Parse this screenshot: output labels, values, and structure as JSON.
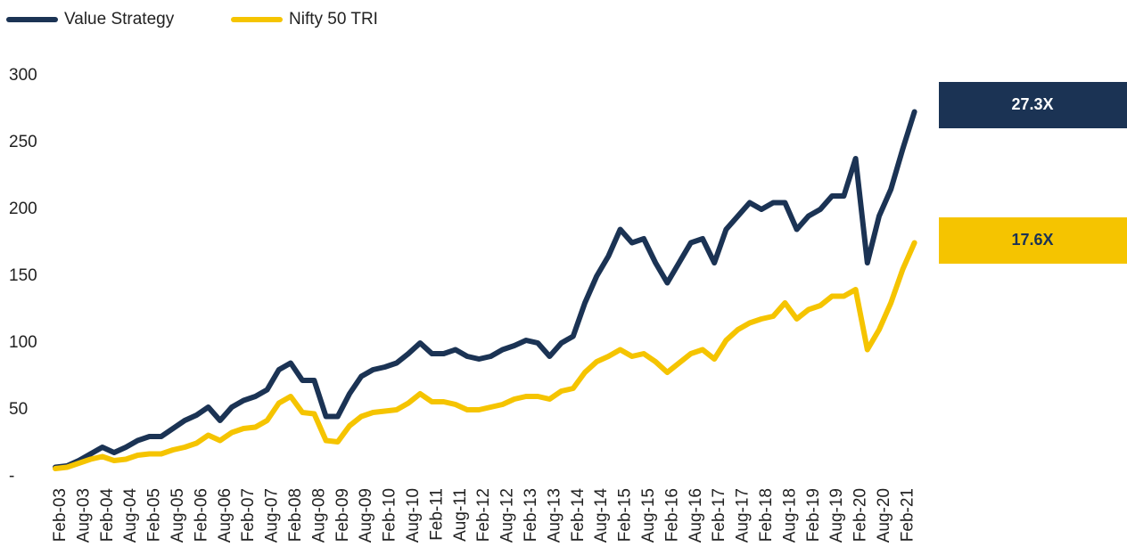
{
  "chart_data": {
    "type": "line",
    "categories": [
      "Feb-03",
      null,
      "Aug-03",
      null,
      "Feb-04",
      null,
      "Aug-04",
      null,
      "Feb-05",
      null,
      "Aug-05",
      null,
      "Feb-06",
      null,
      "Aug-06",
      null,
      "Feb-07",
      null,
      "Aug-07",
      null,
      "Feb-08",
      null,
      "Aug-08",
      null,
      "Feb-09",
      null,
      "Aug-09",
      null,
      "Feb-10",
      null,
      "Aug-10",
      null,
      "Feb-11",
      null,
      "Aug-11",
      null,
      "Feb-12",
      null,
      "Aug-12",
      null,
      "Feb-13",
      null,
      "Aug-13",
      null,
      "Feb-14",
      null,
      "Aug-14",
      null,
      "Feb-15",
      null,
      "Aug-15",
      null,
      "Feb-16",
      null,
      "Aug-16",
      null,
      "Feb-17",
      null,
      "Aug-17",
      null,
      "Feb-18",
      null,
      "Aug-18",
      null,
      "Feb-19",
      null,
      "Aug-19",
      null,
      "Feb-20",
      null,
      "Aug-20",
      null,
      "Feb-21",
      null
    ],
    "series": [
      {
        "name": "Value Strategy",
        "color": "#1b3354",
        "values": [
          7,
          8,
          12,
          17,
          22,
          18,
          22,
          27,
          30,
          30,
          36,
          42,
          46,
          52,
          42,
          52,
          57,
          60,
          65,
          80,
          85,
          72,
          72,
          45,
          45,
          62,
          75,
          80,
          82,
          85,
          92,
          100,
          92,
          92,
          95,
          90,
          88,
          90,
          95,
          98,
          102,
          100,
          90,
          100,
          105,
          130,
          150,
          165,
          185,
          175,
          178,
          160,
          145,
          160,
          175,
          178,
          160,
          185,
          195,
          205,
          200,
          205,
          205,
          185,
          195,
          200,
          210,
          210,
          238,
          160,
          195,
          215,
          245,
          273
        ]
      },
      {
        "name": "Nifty 50 TRI",
        "color": "#f5c400",
        "values": [
          6,
          7,
          10,
          13,
          15,
          12,
          13,
          16,
          17,
          17,
          20,
          22,
          25,
          31,
          27,
          33,
          36,
          37,
          42,
          55,
          60,
          48,
          47,
          27,
          26,
          38,
          45,
          48,
          49,
          50,
          55,
          62,
          56,
          56,
          54,
          50,
          50,
          52,
          54,
          58,
          60,
          60,
          58,
          64,
          66,
          78,
          86,
          90,
          95,
          90,
          92,
          86,
          78,
          85,
          92,
          95,
          88,
          102,
          110,
          115,
          118,
          120,
          130,
          118,
          125,
          128,
          135,
          135,
          140,
          95,
          110,
          130,
          155,
          175
        ]
      }
    ],
    "ylim": [
      0,
      300
    ],
    "yticks": [
      {
        "value": 0,
        "label": "-"
      },
      50,
      100,
      150,
      200,
      250,
      300
    ],
    "legend": "top-left",
    "annotations": [
      {
        "text": "27.3X",
        "color": "#1b3354",
        "text_color": "#ffffff"
      },
      {
        "text": "17.6X",
        "color": "#f5c400",
        "text_color": "#1b3354"
      }
    ]
  }
}
